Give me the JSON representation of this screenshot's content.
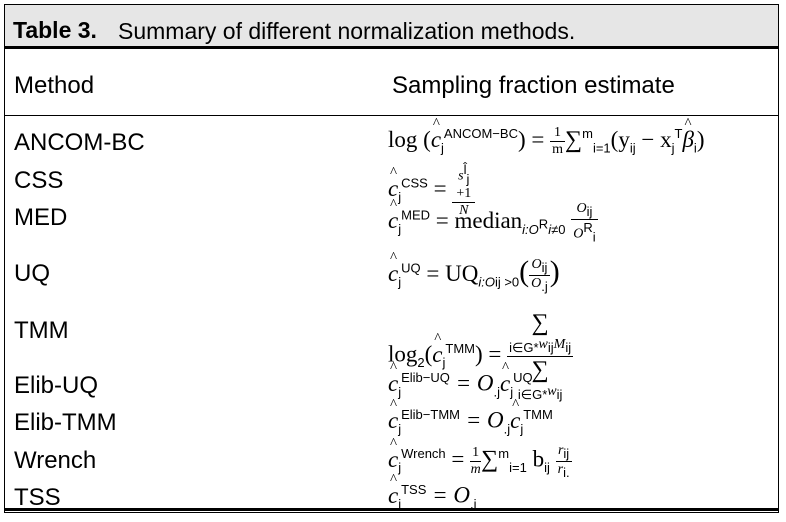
{
  "caption": {
    "number": "Table 3.",
    "text": "Summary of different normalization methods."
  },
  "headers": {
    "method": "Method",
    "estimate": "Sampling fraction estimate"
  },
  "rows": [
    {
      "method": "ANCOM-BC"
    },
    {
      "method": "CSS"
    },
    {
      "method": "MED"
    },
    {
      "method": "UQ"
    },
    {
      "method": "TMM"
    },
    {
      "method": "Elib-UQ"
    },
    {
      "method": "Elib-TMM"
    },
    {
      "method": "Wrench"
    },
    {
      "method": "TSS"
    }
  ],
  "formulas": {
    "ancom": {
      "a": "log (",
      "sup": "ANCOM−BC",
      "b": ") = ",
      "n": "1",
      "d": "m",
      "c": "∑",
      "lim": "i=1",
      "limsup": "m",
      "e": "(y",
      "sub": "ij",
      "f": " − x",
      "g": "j",
      "h": "T",
      "k": "β",
      "l": "i",
      "m": ")"
    },
    "css": {
      "sup": "CSS",
      "eq": " = ",
      "n": "s",
      "nsup": "l̂",
      "nsub": "j",
      "nplus": "+1",
      "d": "N"
    },
    "med": {
      "sup": "MED",
      "eq": " = median",
      "sub": "i:O",
      "subsup": "R",
      "subsub": "i",
      "ne": "≠0",
      "n": "O",
      "nsub": "ij",
      "d": "O",
      "dsup": "R",
      "dsub": "i"
    },
    "uq": {
      "sup": "UQ",
      "eq": " = UQ",
      "sub": "i:O",
      "subsub": "ij",
      "gt": " >0",
      "n": "O",
      "nsub": "ij",
      "d": "O",
      "dsub": ".j"
    },
    "tmm": {
      "a": "log",
      "sub": "2",
      "b": "(",
      "sup": "TMM",
      "c": ") = ",
      "n": "∑",
      "nsub": "i∈G*",
      "w": "w",
      "wsub": "ij",
      "mm": "M",
      "msub": "ij",
      "d": "∑",
      "dsub": "i∈G*",
      "dw": "w",
      "dwsub": "ij"
    },
    "elibuq": {
      "sup": "Elib−UQ",
      "eq": " = O",
      "sub": ".j",
      "sup2": "UQ"
    },
    "elibtmm": {
      "sup": "Elib−TMM",
      "eq": " = O",
      "sub": ".j",
      "sup2": "TMM"
    },
    "wrench": {
      "sup": "Wrench",
      "eq": " = ",
      "n": "1",
      "d": "m",
      "s": "∑",
      "lim": "i=1",
      "limsup": "m",
      "b": "b",
      "bsub": "ij",
      "fn": "r",
      "fnsub": "ij",
      "fd": "r",
      "fdsub": "i."
    },
    "tss": {
      "sup": "TSS",
      "eq": " = O",
      "sub": ".j"
    }
  }
}
